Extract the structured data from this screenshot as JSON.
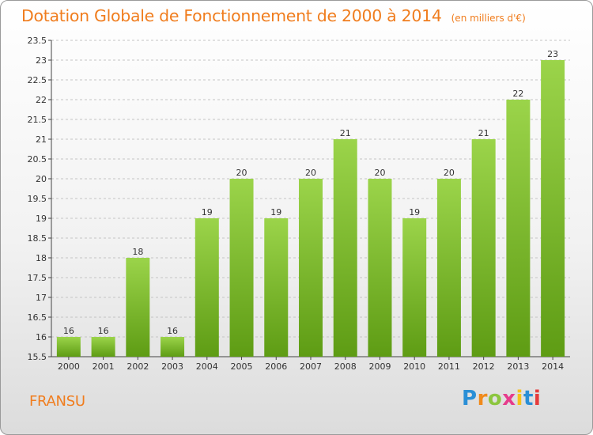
{
  "title": "Dotation Globale de Fonctionnement de 2000 à 2014",
  "unit_note": "(en milliers d'€)",
  "commune": "FRANSU",
  "logo_text": "Proxiti",
  "colors": {
    "title": "#f07d1e",
    "bar_light": "#9bd44a",
    "bar_dark": "#5e9c14",
    "grid": "#c4c4c4",
    "axis_text": "#333333"
  },
  "chart_data": {
    "type": "bar",
    "title": "Dotation Globale de Fonctionnement de 2000 à 2014",
    "xlabel": "",
    "ylabel": "",
    "categories": [
      "2000",
      "2001",
      "2002",
      "2003",
      "2004",
      "2005",
      "2006",
      "2007",
      "2008",
      "2009",
      "2010",
      "2011",
      "2012",
      "2013",
      "2014"
    ],
    "values": [
      16,
      16,
      18,
      16,
      19,
      20,
      19,
      20,
      21,
      20,
      19,
      20,
      21,
      22,
      23
    ],
    "data_labels": [
      "16",
      "16",
      "18",
      "16",
      "19",
      "20",
      "19",
      "20",
      "21",
      "20",
      "19",
      "20",
      "21",
      "22",
      "23"
    ],
    "ylim": [
      15.5,
      23.5
    ],
    "yticks": [
      "15.5",
      "16",
      "16.5",
      "17",
      "17.5",
      "18",
      "18.5",
      "19",
      "19.5",
      "20",
      "20.5",
      "21",
      "21.5",
      "22",
      "22.5",
      "23",
      "23.5"
    ],
    "grid": true
  }
}
